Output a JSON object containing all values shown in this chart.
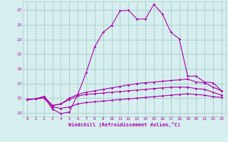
{
  "xlabel": "Windchill (Refroidissement éolien,°C)",
  "background_color": "#d6eeee",
  "grid_color": "#aacccc",
  "line_color": "#aa00aa",
  "x_ticks": [
    0,
    1,
    2,
    3,
    4,
    5,
    6,
    7,
    8,
    9,
    10,
    11,
    12,
    13,
    14,
    15,
    16,
    17,
    18,
    19,
    20,
    21,
    22,
    23
  ],
  "y_ticks": [
    13,
    15,
    17,
    19,
    21,
    23,
    25,
    27
  ],
  "xlim": [
    -0.5,
    23.5
  ],
  "ylim": [
    12.5,
    28.2
  ],
  "line1_x": [
    0,
    1,
    2,
    3,
    4,
    5,
    6,
    7,
    8,
    9,
    10,
    11,
    12,
    13,
    14,
    15,
    16,
    17,
    18,
    19,
    20,
    21,
    22,
    23
  ],
  "line1_y": [
    14.8,
    14.9,
    15.2,
    13.5,
    12.9,
    13.1,
    15.5,
    18.5,
    22.0,
    24.0,
    24.9,
    26.9,
    27.0,
    25.8,
    25.8,
    27.8,
    26.5,
    24.0,
    23.1,
    18.0,
    18.0,
    17.2,
    17.1,
    16.0
  ],
  "line2_x": [
    0,
    1,
    2,
    3,
    4,
    5,
    6,
    7,
    8,
    9,
    10,
    11,
    12,
    13,
    14,
    15,
    16,
    17,
    18,
    19,
    20,
    21,
    22,
    23
  ],
  "line2_y": [
    14.8,
    14.9,
    15.2,
    14.0,
    14.2,
    15.0,
    15.5,
    15.8,
    16.0,
    16.2,
    16.4,
    16.6,
    16.8,
    17.0,
    17.1,
    17.2,
    17.3,
    17.4,
    17.5,
    17.6,
    17.2,
    17.1,
    16.5,
    16.0
  ],
  "line3_x": [
    0,
    1,
    2,
    3,
    4,
    5,
    6,
    7,
    8,
    9,
    10,
    11,
    12,
    13,
    14,
    15,
    16,
    17,
    18,
    19,
    20,
    21,
    22,
    23
  ],
  "line3_y": [
    14.8,
    14.9,
    15.2,
    14.0,
    14.2,
    14.8,
    15.3,
    15.5,
    15.6,
    15.7,
    15.8,
    15.9,
    16.0,
    16.1,
    16.2,
    16.3,
    16.4,
    16.5,
    16.5,
    16.5,
    16.3,
    16.2,
    15.8,
    15.4
  ],
  "line4_x": [
    0,
    1,
    2,
    3,
    4,
    5,
    6,
    7,
    8,
    9,
    10,
    11,
    12,
    13,
    14,
    15,
    16,
    17,
    18,
    19,
    20,
    21,
    22,
    23
  ],
  "line4_y": [
    14.8,
    14.9,
    15.0,
    13.8,
    13.6,
    13.8,
    14.2,
    14.4,
    14.5,
    14.6,
    14.7,
    14.8,
    14.9,
    15.0,
    15.1,
    15.2,
    15.3,
    15.4,
    15.5,
    15.6,
    15.5,
    15.4,
    15.2,
    15.1
  ]
}
